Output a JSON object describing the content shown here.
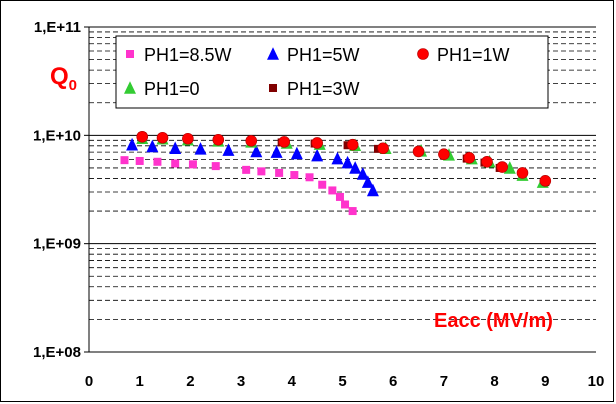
{
  "chart_data": {
    "type": "scatter",
    "title": "",
    "ylabel": "Q",
    "ylabel_subscript": "0",
    "xlabel": "Eacc (MV/m)",
    "xlim": [
      0,
      10
    ],
    "ylim": [
      100000000,
      100000000000
    ],
    "y_scale": "log",
    "x_ticks": [
      "0",
      "1",
      "2",
      "3",
      "4",
      "5",
      "6",
      "7",
      "8",
      "9",
      "10"
    ],
    "y_ticks": [
      {
        "value": 100000000000,
        "label": "1,E+11"
      },
      {
        "value": 10000000000,
        "label": "1,E+10"
      },
      {
        "value": 1000000000,
        "label": "1,E+09"
      },
      {
        "value": 100000000,
        "label": "1,E+08"
      }
    ],
    "grid": "major solid, minor dashed horizontal",
    "legend_position": "top",
    "series": [
      {
        "name": "PH1=8.5W",
        "marker": "square",
        "color": "#ff33cc",
        "x": [
          0.7,
          1.0,
          1.35,
          1.7,
          2.05,
          2.5,
          3.1,
          3.4,
          3.75,
          4.05,
          4.35,
          4.6,
          4.8,
          4.95,
          5.05,
          5.2
        ],
        "y": [
          5900000000,
          5800000000,
          5700000000,
          5500000000,
          5400000000,
          5200000000,
          4800000000,
          4650000000,
          4500000000,
          4300000000,
          4100000000,
          3500000000,
          3100000000,
          2700000000,
          2300000000,
          2000000000
        ]
      },
      {
        "name": "PH1=5W",
        "marker": "triangle",
        "color": "#0000ff",
        "x": [
          0.85,
          1.25,
          1.7,
          2.2,
          2.75,
          3.3,
          3.7,
          4.1,
          4.5,
          4.9,
          5.1,
          5.25,
          5.4,
          5.5,
          5.6
        ],
        "y": [
          8200000000,
          7900000000,
          7600000000,
          7500000000,
          7300000000,
          7100000000,
          7000000000,
          6800000000,
          6500000000,
          6100000000,
          5600000000,
          5000000000,
          4400000000,
          3700000000,
          3100000000
        ]
      },
      {
        "name": "PH1=1W",
        "marker": "circle",
        "color": "#ff0000",
        "x": [
          1.05,
          1.45,
          1.95,
          2.55,
          3.2,
          3.85,
          4.5,
          5.2,
          5.8,
          6.5,
          7.0,
          7.5,
          7.85,
          8.15,
          8.55,
          9.0
        ],
        "y": [
          9700000000,
          9500000000,
          9300000000,
          9100000000,
          8900000000,
          8700000000,
          8500000000,
          8200000000,
          7600000000,
          7100000000,
          6700000000,
          6200000000,
          5700000000,
          5100000000,
          4500000000,
          3800000000
        ]
      },
      {
        "name": "PH1=0",
        "marker": "triangle",
        "color": "#33cc33",
        "x": [
          1.05,
          1.45,
          1.95,
          2.55,
          3.2,
          3.9,
          4.55,
          5.25,
          5.85,
          6.55,
          7.1,
          7.55,
          7.9,
          8.3,
          8.55,
          8.95
        ],
        "y": [
          9400000000,
          9300000000,
          9100000000,
          8900000000,
          8700000000,
          8500000000,
          8300000000,
          8100000000,
          7600000000,
          7200000000,
          6600000000,
          6100000000,
          5700000000,
          5000000000,
          4300000000,
          3700000000
        ]
      },
      {
        "name": "PH1=3W",
        "marker": "square",
        "color": "#800000",
        "x": [
          1.05,
          1.45,
          1.95,
          2.55,
          3.2,
          3.8,
          4.45,
          5.1,
          5.7,
          6.5,
          7.0,
          7.45,
          7.8,
          8.1,
          8.55,
          9.0
        ],
        "y": [
          9800000000,
          9500000000,
          9300000000,
          9100000000,
          8800000000,
          8600000000,
          8400000000,
          8100000000,
          7500000000,
          7000000000,
          6500000000,
          6100000000,
          5600000000,
          5000000000,
          4300000000,
          3700000000
        ]
      }
    ]
  }
}
